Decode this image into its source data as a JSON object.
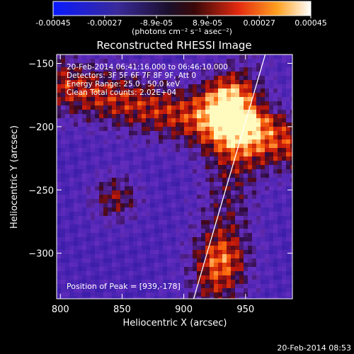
{
  "chart_data": {
    "type": "heatmap",
    "title": "Reconstructed RHESSI Image",
    "xlabel": "Heliocentric X (arcsec)",
    "ylabel": "Heliocentric Y (arcsec)",
    "xlim": [
      797,
      988
    ],
    "ylim": [
      -336,
      -143
    ],
    "xticks": [
      "800",
      "850",
      "900",
      "950"
    ],
    "yticks": [
      "-150",
      "-200",
      "-250",
      "-300"
    ],
    "xtick_values": [
      800,
      850,
      900,
      950
    ],
    "ytick_values": [
      -150,
      -200,
      -250,
      -300
    ],
    "colorbar": {
      "min": -0.00045,
      "max": 0.00045,
      "tick_labels": [
        "-0.00045",
        "-0.00027",
        "-8.9e-05",
        "8.9e-05",
        "0.00027",
        "0.00045"
      ],
      "tick_values": [
        -0.00045,
        -0.00027,
        -8.9e-05,
        8.9e-05,
        0.00027,
        0.00045
      ],
      "unit_label": "(photons cm⁻² s⁻¹ asec⁻²)"
    },
    "annotations": [
      "20-Feb-2014 06:41:16.000 to 06:46:10.000",
      "Detectors: 3F 5F 6F 7F 8F 9F, Att 0",
      "Energy Range: 25.0 - 50.0 keV",
      "Clean    Total counts: 2.02E+04"
    ],
    "peak_label": "Position of Peak = [939,-178]",
    "peak": [
      939,
      -178
    ],
    "limb": {
      "from": [
        966,
        -143
      ],
      "to": [
        908,
        -336
      ]
    }
  },
  "footer_timestamp": "20-Feb-2014 08:53"
}
